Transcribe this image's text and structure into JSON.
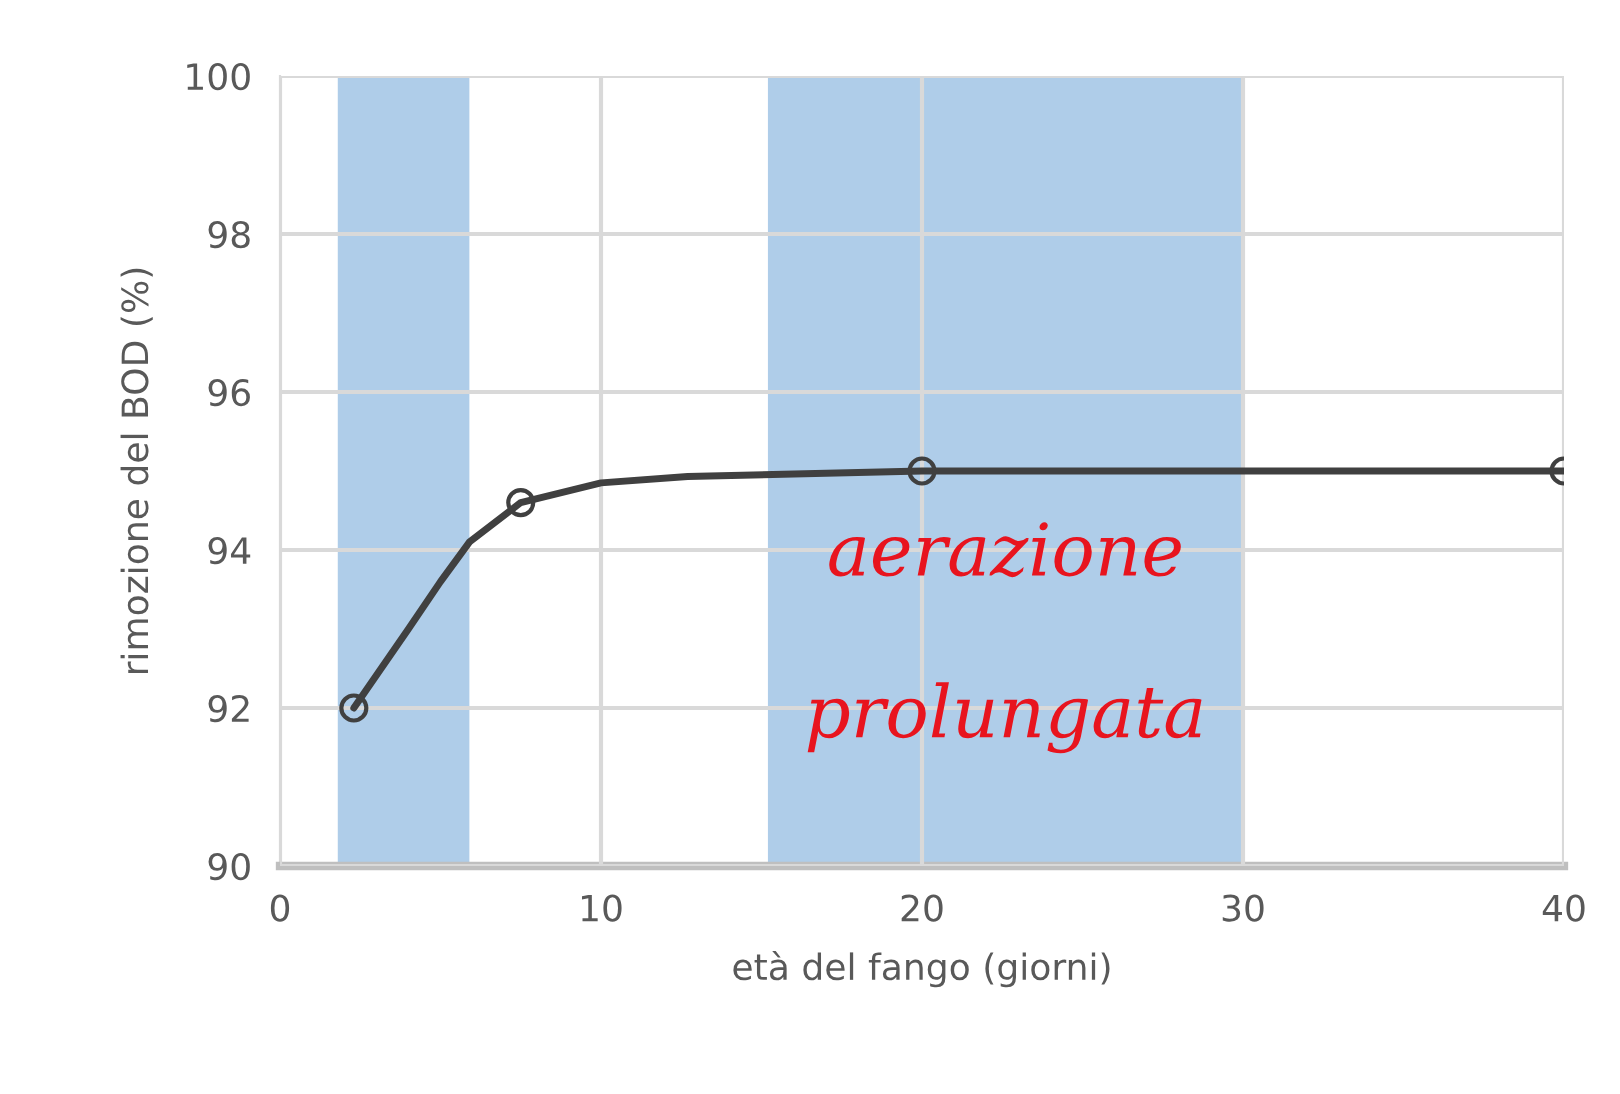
{
  "chart_data": {
    "type": "line",
    "xlabel": "età del fango (giorni)",
    "ylabel": "rimozione del BOD (%)",
    "x": [
      2.3,
      7.5,
      20,
      40
    ],
    "series": [
      {
        "color": "#404040",
        "marker": "none",
        "x": [
          2.3,
          4.0,
          5.0,
          5.9,
          7.5,
          10,
          12.7,
          20,
          40
        ],
        "values": [
          92.0,
          93.0,
          93.6,
          94.1,
          94.6,
          94.85,
          94.93,
          95.0,
          95.0
        ]
      },
      {
        "type": "scatter",
        "color": "#404040",
        "marker": "circle",
        "values": [
          92.0,
          94.6,
          95.0,
          95.0
        ]
      }
    ],
    "xlim": [
      0,
      40
    ],
    "xticks": [
      0,
      10,
      20,
      30,
      40
    ],
    "ylim": [
      90,
      100
    ],
    "yticks": [
      90,
      92,
      94,
      96,
      98,
      100
    ],
    "bands": [
      {
        "axis": "x",
        "from": 1.8,
        "to": 5.9,
        "color": "#afcde9"
      },
      {
        "axis": "x",
        "from": 15.2,
        "to": 30,
        "color": "#afcde9",
        "label": "aerazione\n\nprolungata"
      }
    ],
    "grid": true,
    "line_style": "solid",
    "legend": false
  }
}
